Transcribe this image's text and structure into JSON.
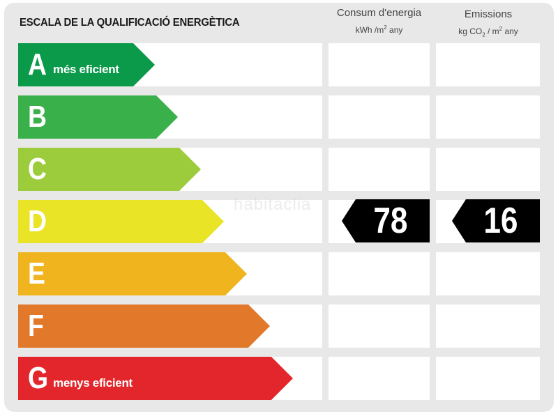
{
  "title": "ESCALA DE LA QUALIFICACIÓ ENERGÈTICA",
  "columns": {
    "consum": {
      "label": "Consum d'energia",
      "unit_pre": "kWh /m",
      "unit_sup": "2",
      "unit_post": " any"
    },
    "emissions": {
      "label": "Emissions",
      "unit_pre": "kg CO",
      "unit_sub": "2",
      "unit_mid": " / m",
      "unit_sup": "2",
      "unit_post": " any"
    }
  },
  "grades": [
    {
      "letter": "A",
      "desc": "més eficient",
      "color": "#0a9a4a"
    },
    {
      "letter": "B",
      "desc": "",
      "color": "#3ab04a"
    },
    {
      "letter": "C",
      "desc": "",
      "color": "#9ccb3b"
    },
    {
      "letter": "D",
      "desc": "",
      "color": "#e9e425"
    },
    {
      "letter": "E",
      "desc": "",
      "color": "#f0b51e"
    },
    {
      "letter": "F",
      "desc": "",
      "color": "#e2782a"
    },
    {
      "letter": "G",
      "desc": "menys eficient",
      "color": "#e3262b"
    }
  ],
  "rating": {
    "grade": "D",
    "consum_value": "78",
    "emissions_value": "16"
  },
  "watermark": "habitaclia"
}
